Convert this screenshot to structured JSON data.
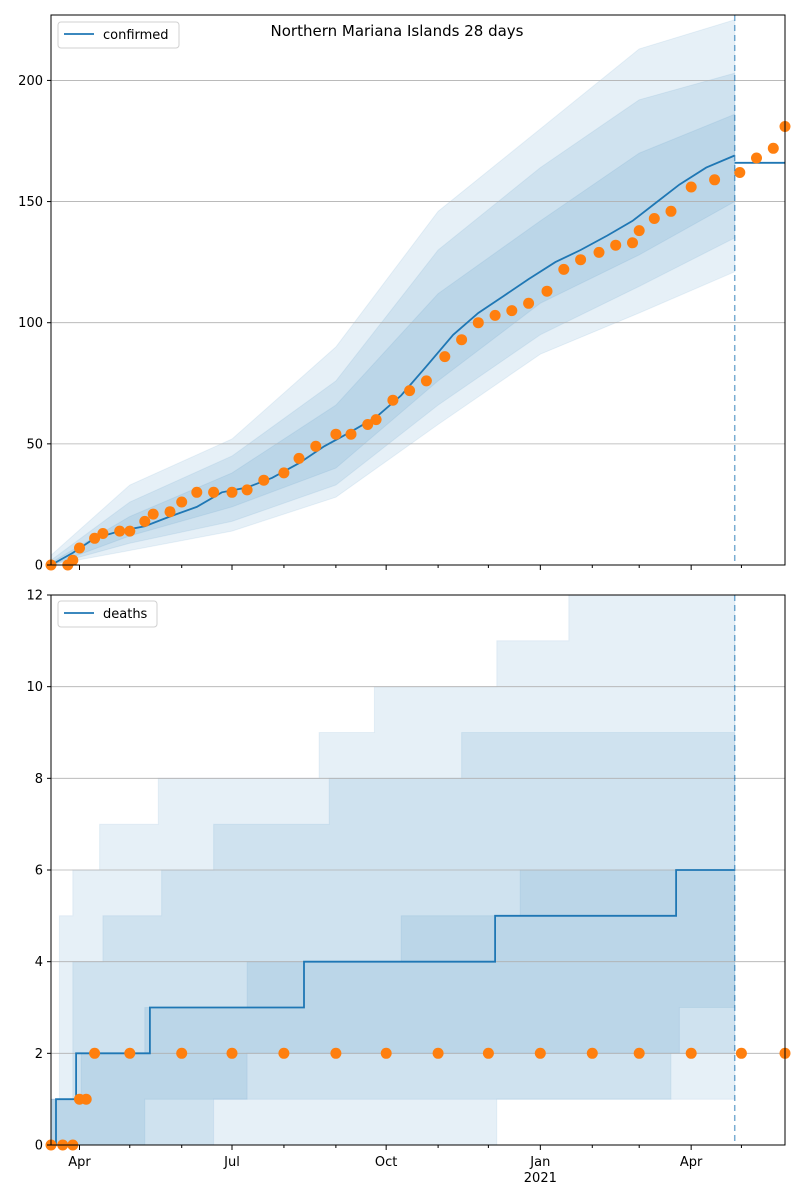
{
  "chart_data": [
    {
      "type": "line",
      "title": "Northern Mariana Islands 28 days",
      "legend": {
        "label": "confirmed",
        "placement": "top-left"
      },
      "ylim": [
        0,
        227
      ],
      "yticks": [
        0,
        50,
        100,
        150,
        200
      ],
      "grid": "horizontal",
      "forecast_start": "2021-04-27",
      "colors": {
        "line": "#1f77b4",
        "points": "#ff7f0e",
        "band": "#1f77b4",
        "grid": "#b0b0b0"
      },
      "series": [
        {
          "name": "confirmed",
          "style": "line",
          "x": [
            "2020-03-15",
            "2020-03-28",
            "2020-04-10",
            "2020-04-25",
            "2020-05-10",
            "2020-05-25",
            "2020-06-10",
            "2020-06-25",
            "2020-07-10",
            "2020-07-25",
            "2020-08-10",
            "2020-08-25",
            "2020-09-10",
            "2020-09-25",
            "2020-10-10",
            "2020-10-25",
            "2020-11-10",
            "2020-11-25",
            "2020-12-10",
            "2020-12-25",
            "2021-01-10",
            "2021-01-25",
            "2021-02-10",
            "2021-02-25",
            "2021-03-10",
            "2021-03-25",
            "2021-04-10",
            "2021-04-27"
          ],
          "y": [
            0,
            5,
            11,
            14,
            16,
            20,
            24,
            30,
            32,
            36,
            42,
            49,
            55,
            61,
            70,
            82,
            95,
            104,
            111,
            118,
            125,
            130,
            136,
            142,
            149,
            157,
            164,
            169
          ]
        },
        {
          "name": "forecast",
          "style": "flat-line",
          "x": [
            "2021-04-27",
            "2021-05-27"
          ],
          "y": [
            166,
            166
          ]
        },
        {
          "name": "observed",
          "style": "markers",
          "x": [
            "2020-03-15",
            "2020-03-25",
            "2020-03-28",
            "2020-04-01",
            "2020-04-10",
            "2020-04-15",
            "2020-04-25",
            "2020-05-01",
            "2020-05-10",
            "2020-05-15",
            "2020-05-25",
            "2020-06-01",
            "2020-06-10",
            "2020-06-20",
            "2020-07-01",
            "2020-07-10",
            "2020-07-20",
            "2020-08-01",
            "2020-08-10",
            "2020-08-20",
            "2020-09-01",
            "2020-09-10",
            "2020-09-20",
            "2020-09-25",
            "2020-10-05",
            "2020-10-15",
            "2020-10-25",
            "2020-11-05",
            "2020-11-15",
            "2020-11-25",
            "2020-12-05",
            "2020-12-15",
            "2020-12-25",
            "2021-01-05",
            "2021-01-15",
            "2021-01-25",
            "2021-02-05",
            "2021-02-15",
            "2021-02-25",
            "2021-03-01",
            "2021-03-10",
            "2021-03-20",
            "2021-04-01",
            "2021-04-15",
            "2021-04-30",
            "2021-05-10",
            "2021-05-20",
            "2021-05-27"
          ],
          "y": [
            0,
            0,
            2,
            7,
            11,
            13,
            14,
            14,
            18,
            21,
            22,
            26,
            30,
            30,
            30,
            31,
            35,
            38,
            44,
            49,
            54,
            54,
            58,
            60,
            68,
            72,
            76,
            86,
            93,
            100,
            103,
            105,
            108,
            113,
            122,
            126,
            129,
            132,
            133,
            138,
            143,
            146,
            156,
            159,
            162,
            168,
            172,
            181
          ]
        }
      ],
      "bands": [
        {
          "name": "band-1",
          "x": [
            "2020-03-15",
            "2020-05-01",
            "2020-07-01",
            "2020-09-01",
            "2020-11-01",
            "2021-01-01",
            "2021-03-01",
            "2021-04-27"
          ],
          "low": [
            0,
            6,
            14,
            28,
            58,
            87,
            104,
            121
          ],
          "high": [
            4,
            33,
            52,
            90,
            146,
            180,
            213,
            225
          ]
        },
        {
          "name": "band-2",
          "x": [
            "2020-03-15",
            "2020-05-01",
            "2020-07-01",
            "2020-09-01",
            "2020-11-01",
            "2021-01-01",
            "2021-03-01",
            "2021-04-27"
          ],
          "low": [
            0,
            9,
            18,
            33,
            66,
            95,
            115,
            135
          ],
          "high": [
            2,
            26,
            45,
            76,
            130,
            164,
            192,
            203
          ]
        },
        {
          "name": "band-3",
          "x": [
            "2020-03-15",
            "2020-05-01",
            "2020-07-01",
            "2020-09-01",
            "2020-11-01",
            "2021-01-01",
            "2021-03-01",
            "2021-04-27"
          ],
          "low": [
            0,
            12,
            24,
            40,
            76,
            108,
            128,
            150
          ],
          "high": [
            1,
            20,
            38,
            66,
            112,
            142,
            170,
            186
          ]
        }
      ]
    },
    {
      "type": "line",
      "xlabel": "",
      "legend": {
        "label": "deaths",
        "placement": "top-left"
      },
      "ylim": [
        0,
        12
      ],
      "yticks": [
        0,
        2,
        4,
        6,
        8,
        10,
        12
      ],
      "grid": "horizontal",
      "forecast_start": "2021-04-27",
      "colors": {
        "line": "#1f77b4",
        "points": "#ff7f0e",
        "band": "#1f77b4",
        "grid": "#b0b0b0"
      },
      "series": [
        {
          "name": "deaths",
          "style": "step",
          "x": [
            "2020-03-15",
            "2020-03-18",
            "2020-03-30",
            "2020-05-13",
            "2020-08-13",
            "2020-12-05",
            "2021-03-23",
            "2021-04-27"
          ],
          "y": [
            0,
            1,
            2,
            3,
            4,
            5,
            6,
            6
          ]
        },
        {
          "name": "observed",
          "style": "markers",
          "x": [
            "2020-03-15",
            "2020-03-22",
            "2020-03-28",
            "2020-04-01",
            "2020-04-05",
            "2020-04-10",
            "2020-05-01",
            "2020-06-01",
            "2020-07-01",
            "2020-08-01",
            "2020-09-01",
            "2020-10-01",
            "2020-11-01",
            "2020-12-01",
            "2021-01-01",
            "2021-02-01",
            "2021-03-01",
            "2021-04-01",
            "2021-05-01",
            "2021-05-27"
          ],
          "y": [
            0,
            0,
            0,
            1,
            1,
            2,
            2,
            2,
            2,
            2,
            2,
            2,
            2,
            2,
            2,
            2,
            2,
            2,
            2,
            2
          ]
        }
      ],
      "bands": [
        {
          "name": "band-1",
          "x": [
            "2020-03-15",
            "2020-03-20",
            "2020-03-28",
            "2020-04-13",
            "2020-05-18",
            "2020-08-22",
            "2020-09-24",
            "2020-12-06",
            "2021-01-18",
            "2021-04-27"
          ],
          "low": [
            0,
            0,
            0,
            0,
            0,
            0,
            0,
            1,
            1,
            1
          ],
          "high": [
            1,
            5,
            6,
            7,
            8,
            9,
            10,
            11,
            12,
            12
          ]
        },
        {
          "name": "band-2",
          "x": [
            "2020-03-15",
            "2020-03-28",
            "2020-04-15",
            "2020-05-20",
            "2020-06-20",
            "2020-08-28",
            "2020-11-15",
            "2021-03-20",
            "2021-04-27"
          ],
          "low": [
            0,
            0,
            0,
            0,
            1,
            1,
            1,
            2,
            2
          ],
          "high": [
            1,
            4,
            5,
            6,
            7,
            8,
            9,
            9,
            11
          ]
        },
        {
          "name": "band-3",
          "x": [
            "2020-03-15",
            "2020-04-02",
            "2020-05-10",
            "2020-07-10",
            "2020-10-10",
            "2020-12-20",
            "2021-03-25",
            "2021-04-27"
          ],
          "low": [
            0,
            0,
            1,
            2,
            2,
            2,
            3,
            3
          ],
          "high": [
            1,
            2,
            3,
            4,
            5,
            6,
            6,
            8
          ]
        }
      ],
      "xticks": [
        {
          "date": "2020-04-01",
          "label": "Apr"
        },
        {
          "date": "2020-07-01",
          "label": "Jul"
        },
        {
          "date": "2020-10-01",
          "label": "Oct"
        },
        {
          "date": "2021-01-01",
          "label": "Jan",
          "sublabel": "2021"
        },
        {
          "date": "2021-04-01",
          "label": "Apr"
        }
      ]
    }
  ]
}
